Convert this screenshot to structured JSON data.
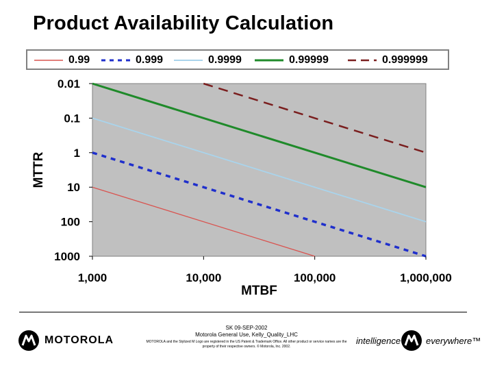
{
  "title": "Product Availability Calculation",
  "chart_data": {
    "type": "line",
    "xlabel": "MTBF",
    "ylabel": "MTTR",
    "x_scale": "log",
    "y_scale": "log",
    "y_inverted": true,
    "xlim": [
      1000,
      1000000
    ],
    "ylim": [
      0.01,
      1000
    ],
    "x_ticks": [
      1000,
      10000,
      100000,
      1000000
    ],
    "x_tick_labels": [
      "1,000",
      "10,000",
      "100,000",
      "1,000,000"
    ],
    "y_ticks": [
      0.01,
      0.1,
      1,
      10,
      100,
      1000
    ],
    "y_tick_labels": [
      "0.01",
      "0.1",
      "1",
      "10",
      "100",
      "1000"
    ],
    "grid": false,
    "legend_position": "top",
    "series": [
      {
        "name": "0.99",
        "color": "#d9534f",
        "style": "thin-solid",
        "points": [
          [
            1000,
            10
          ],
          [
            100000,
            1000
          ]
        ]
      },
      {
        "name": "0.999",
        "color": "#1f2fcc",
        "style": "short-dash",
        "points": [
          [
            1000,
            1
          ],
          [
            1000000,
            1000
          ]
        ]
      },
      {
        "name": "0.9999",
        "color": "#a9d4ec",
        "style": "solid",
        "points": [
          [
            1000,
            0.1
          ],
          [
            1000000,
            100
          ]
        ]
      },
      {
        "name": "0.99999",
        "color": "#1f8a2a",
        "style": "thick-solid",
        "points": [
          [
            1000,
            0.01
          ],
          [
            1000000,
            10
          ]
        ]
      },
      {
        "name": "0.999999",
        "color": "#7a1e1e",
        "style": "long-dash",
        "points": [
          [
            10000,
            0.01
          ],
          [
            1000000,
            1
          ]
        ]
      }
    ]
  },
  "footer": {
    "line1": "SK 09-SEP-2002",
    "line2": "Motorola General Use, Kelly_Quality_LHC",
    "legal": "MOTOROLA and the Stylized M Logo are registered in the US Patent & Trademark Office. All other product or service names are the property of their respective owners. © Motorola, Inc. 2002.",
    "brand": "MOTOROLA",
    "tagline_left": "intelligence",
    "tagline_right": "everywhere™"
  }
}
